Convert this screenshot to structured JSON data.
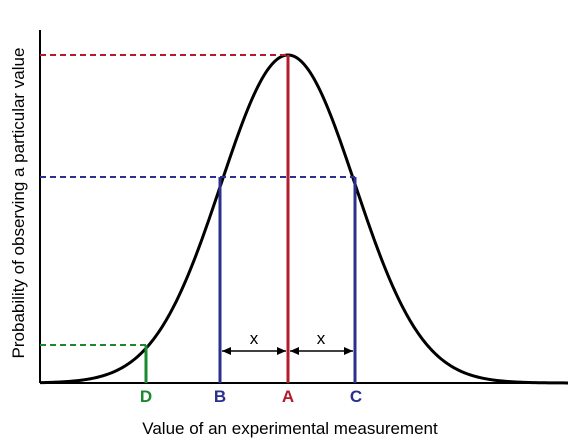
{
  "diagram": {
    "axes": {
      "xlabel": "Value of an experimental measurement",
      "ylabel": "Probability of observing a particular value"
    },
    "points": [
      {
        "id": "D",
        "label": "D",
        "color": "#1a8a2e"
      },
      {
        "id": "B",
        "label": "B",
        "color": "#2b2f8f"
      },
      {
        "id": "A",
        "label": "A",
        "color": "#b51b2b"
      },
      {
        "id": "C",
        "label": "C",
        "color": "#2b2f8f"
      }
    ],
    "intervals": [
      {
        "label": "x",
        "from": "B",
        "to": "A"
      },
      {
        "label": "x",
        "from": "A",
        "to": "C"
      }
    ],
    "colors": {
      "curve": "#000000",
      "mean": "#b51b2b",
      "interval": "#2b2f8f",
      "tail": "#1a8a2e"
    }
  }
}
